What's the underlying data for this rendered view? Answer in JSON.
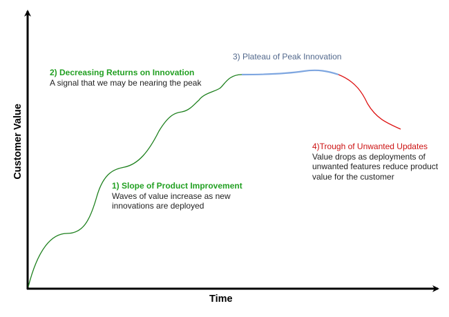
{
  "axes": {
    "x_label": "Time",
    "y_label": "Customer Value"
  },
  "stages": [
    {
      "title": "1) Slope of Product Improvement",
      "lines": [
        "Waves of value increase as new",
        "innovations are deployed"
      ]
    },
    {
      "title": "2) Decreasing Returns on Innovation",
      "lines": [
        "A signal that we may be nearing the peak"
      ]
    },
    {
      "title": "3) Plateau of Peak Innovation",
      "lines": []
    },
    {
      "title": "4)Trough of Unwanted Updates",
      "lines": [
        "Value drops as deployments of",
        "unwanted features reduce product",
        "value for the customer"
      ]
    }
  ],
  "colors": {
    "growth": "#1b7f1b",
    "plateau": "#7ea6e0",
    "decline": "#dd1111",
    "axis": "#000000"
  }
}
